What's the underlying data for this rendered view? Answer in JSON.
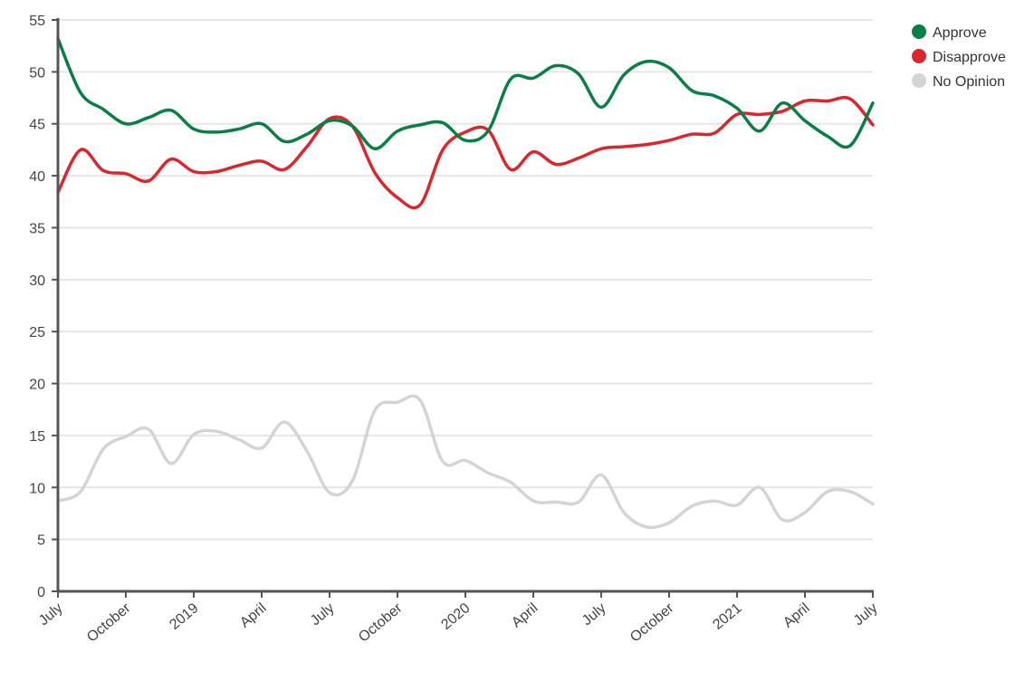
{
  "chart_data": {
    "type": "line",
    "title": "",
    "xlabel": "",
    "ylabel": "",
    "x_ticks": [
      "July",
      "October",
      "2019",
      "April",
      "July",
      "October",
      "2020",
      "April",
      "July",
      "October",
      "2021",
      "April",
      "July"
    ],
    "x_tick_dates": [
      "2018-07",
      "2018-10",
      "2019-01",
      "2019-04",
      "2019-07",
      "2019-10",
      "2020-01",
      "2020-04",
      "2020-07",
      "2020-10",
      "2021-01",
      "2021-04",
      "2021-07"
    ],
    "y_ticks": [
      0,
      5,
      10,
      15,
      20,
      25,
      30,
      35,
      40,
      45,
      50,
      55
    ],
    "ylim": [
      0,
      55
    ],
    "xlim": [
      "2018-07",
      "2021-07"
    ],
    "grid": true,
    "legend_position": "top-right",
    "series": [
      {
        "name": "Approve",
        "color": "#0a7f45",
        "points": [
          [
            "2018-07",
            53.2
          ],
          [
            "2018-08",
            48.0
          ],
          [
            "2018-09",
            46.4
          ],
          [
            "2018-10",
            45.0
          ],
          [
            "2018-11",
            45.6
          ],
          [
            "2018-12",
            46.3
          ],
          [
            "2019-01",
            44.5
          ],
          [
            "2019-02",
            44.2
          ],
          [
            "2019-03",
            44.5
          ],
          [
            "2019-04",
            45.0
          ],
          [
            "2019-05",
            43.3
          ],
          [
            "2019-06",
            44.0
          ],
          [
            "2019-07",
            45.3
          ],
          [
            "2019-08",
            44.8
          ],
          [
            "2019-09",
            42.6
          ],
          [
            "2019-10",
            44.3
          ],
          [
            "2019-11",
            44.9
          ],
          [
            "2019-12",
            45.1
          ],
          [
            "2020-01",
            43.4
          ],
          [
            "2020-02",
            44.3
          ],
          [
            "2020-03",
            49.3
          ],
          [
            "2020-04",
            49.4
          ],
          [
            "2020-05",
            50.6
          ],
          [
            "2020-06",
            49.8
          ],
          [
            "2020-07",
            46.6
          ],
          [
            "2020-08",
            49.7
          ],
          [
            "2020-09",
            51.0
          ],
          [
            "2020-10",
            50.4
          ],
          [
            "2020-11",
            48.2
          ],
          [
            "2020-12",
            47.7
          ],
          [
            "2021-01",
            46.5
          ],
          [
            "2021-02",
            44.3
          ],
          [
            "2021-03",
            47.0
          ],
          [
            "2021-04",
            45.3
          ],
          [
            "2021-05",
            43.8
          ],
          [
            "2021-06",
            42.9
          ],
          [
            "2021-07",
            47.0
          ]
        ]
      },
      {
        "name": "Disapprove",
        "color": "#d9272e",
        "points": [
          [
            "2018-07",
            38.4
          ],
          [
            "2018-08",
            42.5
          ],
          [
            "2018-09",
            40.5
          ],
          [
            "2018-10",
            40.2
          ],
          [
            "2018-11",
            39.5
          ],
          [
            "2018-12",
            41.6
          ],
          [
            "2019-01",
            40.4
          ],
          [
            "2019-02",
            40.4
          ],
          [
            "2019-03",
            41.0
          ],
          [
            "2019-04",
            41.4
          ],
          [
            "2019-05",
            40.6
          ],
          [
            "2019-06",
            42.8
          ],
          [
            "2019-07",
            45.5
          ],
          [
            "2019-08",
            44.8
          ],
          [
            "2019-09",
            40.3
          ],
          [
            "2019-10",
            37.9
          ],
          [
            "2019-11",
            37.2
          ],
          [
            "2019-12",
            42.5
          ],
          [
            "2020-01",
            44.2
          ],
          [
            "2020-02",
            44.4
          ],
          [
            "2020-03",
            40.6
          ],
          [
            "2020-04",
            42.3
          ],
          [
            "2020-05",
            41.1
          ],
          [
            "2020-06",
            41.7
          ],
          [
            "2020-07",
            42.6
          ],
          [
            "2020-08",
            42.8
          ],
          [
            "2020-09",
            43.0
          ],
          [
            "2020-10",
            43.4
          ],
          [
            "2020-11",
            44.0
          ],
          [
            "2020-12",
            44.1
          ],
          [
            "2021-01",
            45.9
          ],
          [
            "2021-02",
            45.9
          ],
          [
            "2021-03",
            46.2
          ],
          [
            "2021-04",
            47.2
          ],
          [
            "2021-05",
            47.2
          ],
          [
            "2021-06",
            47.4
          ],
          [
            "2021-07",
            44.9
          ]
        ]
      },
      {
        "name": "No Opinion",
        "color": "#d4d4d4",
        "points": [
          [
            "2018-07",
            8.7
          ],
          [
            "2018-08",
            9.6
          ],
          [
            "2018-09",
            13.7
          ],
          [
            "2018-10",
            14.9
          ],
          [
            "2018-11",
            15.6
          ],
          [
            "2018-12",
            12.3
          ],
          [
            "2019-01",
            15.1
          ],
          [
            "2019-02",
            15.4
          ],
          [
            "2019-03",
            14.6
          ],
          [
            "2019-04",
            13.8
          ],
          [
            "2019-05",
            16.3
          ],
          [
            "2019-06",
            13.5
          ],
          [
            "2019-07",
            9.5
          ],
          [
            "2019-08",
            10.6
          ],
          [
            "2019-09",
            17.4
          ],
          [
            "2019-10",
            18.2
          ],
          [
            "2019-11",
            18.4
          ],
          [
            "2019-12",
            12.5
          ],
          [
            "2020-01",
            12.6
          ],
          [
            "2020-02",
            11.4
          ],
          [
            "2020-03",
            10.5
          ],
          [
            "2020-04",
            8.7
          ],
          [
            "2020-05",
            8.6
          ],
          [
            "2020-06",
            8.6
          ],
          [
            "2020-07",
            11.2
          ],
          [
            "2020-08",
            7.6
          ],
          [
            "2020-09",
            6.2
          ],
          [
            "2020-10",
            6.6
          ],
          [
            "2020-11",
            8.2
          ],
          [
            "2020-12",
            8.7
          ],
          [
            "2021-01",
            8.3
          ],
          [
            "2021-02",
            10.0
          ],
          [
            "2021-03",
            6.9
          ],
          [
            "2021-04",
            7.6
          ],
          [
            "2021-05",
            9.6
          ],
          [
            "2021-06",
            9.6
          ],
          [
            "2021-07",
            8.4
          ]
        ]
      }
    ]
  }
}
